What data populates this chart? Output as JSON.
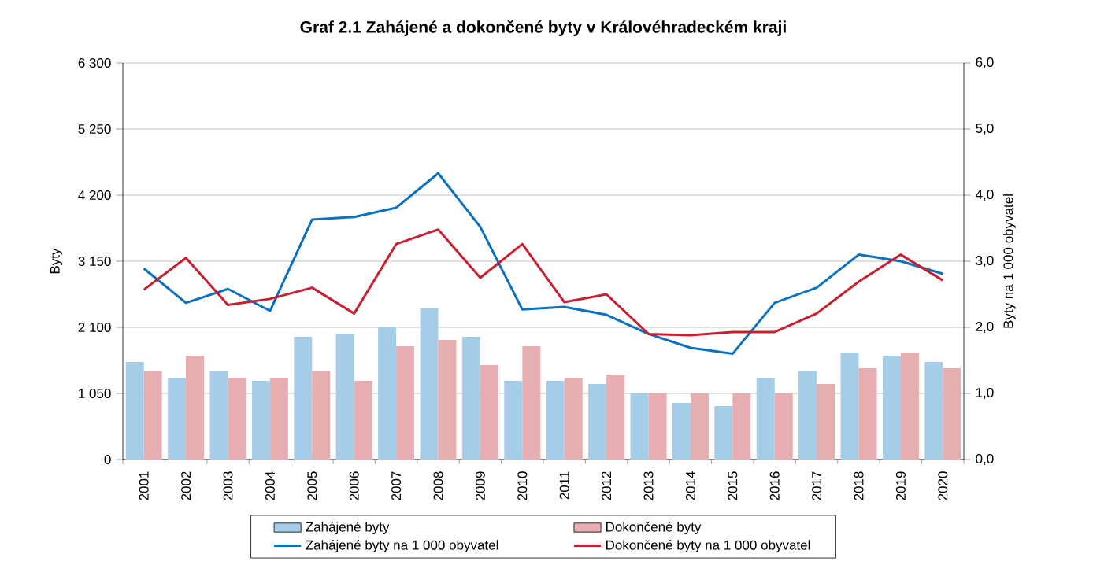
{
  "chart_data": {
    "type": "bar",
    "title": "Graf 2.1 Zahájené a dokončené byty v Královéhradeckém kraji",
    "ylabel": "Byty",
    "y2label": "Byty na 1 000 obyvatel",
    "categories": [
      "2001",
      "2002",
      "2003",
      "2004",
      "2005",
      "2006",
      "2007",
      "2008",
      "2009",
      "2010",
      "2011",
      "2012",
      "2013",
      "2014",
      "2015",
      "2016",
      "2017",
      "2018",
      "2019",
      "2020"
    ],
    "series": [
      {
        "name": "Zahájené byty",
        "color": "#a6cde8",
        "values": [
          1550,
          1300,
          1400,
          1250,
          1950,
          2000,
          2100,
          2400,
          1950,
          1250,
          1250,
          1200,
          1050,
          900,
          850,
          1300,
          1400,
          1700,
          1650,
          1550
        ]
      },
      {
        "name": "Dokončené byty",
        "color": "#e6aeb0",
        "values": [
          1400,
          1650,
          1300,
          1300,
          1400,
          1250,
          1800,
          1900,
          1500,
          1800,
          1300,
          1350,
          1050,
          1050,
          1050,
          1050,
          1200,
          1450,
          1700,
          1450
        ]
      },
      {
        "name": "Zahájené byty na 1 000 obyvatel",
        "type": "line",
        "axis": "y2",
        "color": "#0a70c0",
        "values": [
          2.89,
          2.37,
          2.58,
          2.25,
          3.63,
          3.67,
          3.81,
          4.33,
          3.52,
          2.27,
          2.31,
          2.19,
          1.9,
          1.69,
          1.6,
          2.37,
          2.6,
          3.1,
          3.0,
          2.81
        ]
      },
      {
        "name": "Dokončené byty na 1 000 obyvatel",
        "type": "line",
        "axis": "y2",
        "color": "#c8202e",
        "values": [
          2.57,
          3.05,
          2.34,
          2.43,
          2.6,
          2.21,
          3.26,
          3.48,
          2.75,
          3.26,
          2.38,
          2.5,
          1.9,
          1.88,
          1.93,
          1.93,
          2.21,
          2.69,
          3.1,
          2.71
        ]
      }
    ],
    "ylim": [
      0,
      6300
    ],
    "yticks": [
      0,
      {
        "value": 1050,
        "label": "1 050"
      },
      {
        "value": 2100,
        "label": "2 100"
      },
      {
        "value": 3150,
        "label": "3 150"
      },
      {
        "value": 4200,
        "label": "4 200"
      },
      {
        "value": 5250,
        "label": "5 250"
      },
      {
        "value": 6300,
        "label": "6 300"
      }
    ],
    "y2lim": [
      0,
      6
    ],
    "y2ticks": [
      {
        "value": 0,
        "label": "0,0"
      },
      {
        "value": 1,
        "label": "1,0"
      },
      {
        "value": 2,
        "label": "2,0"
      },
      {
        "value": 3,
        "label": "3,0"
      },
      {
        "value": 4,
        "label": "4,0"
      },
      {
        "value": 5,
        "label": "5,0"
      },
      {
        "value": 6,
        "label": "6,0"
      }
    ],
    "grid": "y",
    "legend": "bottom"
  }
}
